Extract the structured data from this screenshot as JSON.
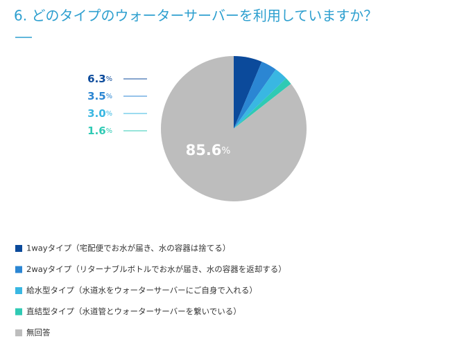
{
  "chart_data": {
    "type": "pie",
    "title": "6. どのタイプのウォーターサーバーを利用していますか？",
    "categories": [
      "1wayタイプ（宅配便でお水が届き、水の容器は捨てる）",
      "2wayタイプ（リターナブルボトルでお水が届き、水の容器を返却する）",
      "給水型タイプ（水道水をウォーターサーバーにご自身で入れる）",
      "直結型タイプ（水道管とウォーターサーバーを繋いでいる）",
      "無回答"
    ],
    "values": [
      6.3,
      3.5,
      3.0,
      1.6,
      85.6
    ],
    "value_labels": [
      "6.3%",
      "3.5%",
      "3.0%",
      "1.6%",
      "85.6%"
    ],
    "colors": [
      "#0b4a9b",
      "#2b86d3",
      "#39b7e2",
      "#2fcab4",
      "#bdbdbd"
    ]
  }
}
